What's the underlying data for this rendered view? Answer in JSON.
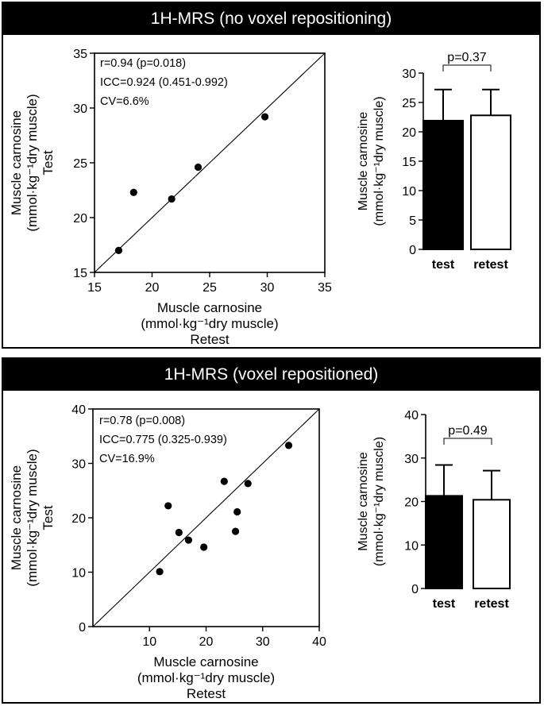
{
  "chart_data": [
    {
      "id": "top",
      "panel_title": "1H-MRS (no voxel repositioning)",
      "scatter": {
        "type": "scatter",
        "xlabel_lines": [
          "Muscle carnosine",
          "(mmol·kg⁻¹dry muscle)",
          "Retest"
        ],
        "ylabel_lines": [
          "Muscle carnosine",
          "(mmol·kg⁻¹dry muscle)",
          "Test"
        ],
        "xlim": [
          15,
          35
        ],
        "ylim": [
          15,
          35
        ],
        "xticks": [
          15,
          20,
          25,
          30,
          35
        ],
        "yticks": [
          15,
          20,
          25,
          30,
          35
        ],
        "identity_line": true,
        "stats": [
          "r=0.94 (p=0.018)",
          "ICC=0.924 (0.451-0.992)",
          "CV=6.6%"
        ],
        "points": [
          {
            "x": 17.1,
            "y": 17.0
          },
          {
            "x": 18.4,
            "y": 22.3
          },
          {
            "x": 21.7,
            "y": 21.7
          },
          {
            "x": 24.0,
            "y": 24.6
          },
          {
            "x": 29.8,
            "y": 29.2
          }
        ]
      },
      "bar": {
        "type": "bar",
        "ylabel_lines": [
          "Muscle carnosine",
          "(mmol·kg⁻¹dry muscle)"
        ],
        "ylim": [
          0,
          30
        ],
        "yticks": [
          0,
          5,
          10,
          15,
          20,
          25,
          30
        ],
        "categories": [
          "test",
          "retest"
        ],
        "values": [
          21.9,
          22.8
        ],
        "errors": [
          5.3,
          4.4
        ],
        "fills": [
          "#000000",
          "#ffffff"
        ],
        "pvalue": "p=0.37"
      }
    },
    {
      "id": "bottom",
      "panel_title": "1H-MRS (voxel repositioned)",
      "scatter": {
        "type": "scatter",
        "xlabel_lines": [
          "Muscle carnosine",
          "(mmol·kg⁻¹dry muscle)",
          "Retest"
        ],
        "ylabel_lines": [
          "Muscle carnosine",
          "(mmol·kg⁻¹dry muscle)",
          "Test"
        ],
        "xlim": [
          0,
          40
        ],
        "ylim": [
          0,
          40
        ],
        "xticks": [
          10,
          20,
          30,
          40
        ],
        "yticks": [
          0,
          10,
          20,
          30,
          40
        ],
        "identity_line": true,
        "stats": [
          "r=0.78 (p=0.008)",
          "ICC=0.775 (0.325-0.939)",
          "CV=16.9%"
        ],
        "points": [
          {
            "x": 11.8,
            "y": 10.1
          },
          {
            "x": 13.3,
            "y": 22.2
          },
          {
            "x": 15.2,
            "y": 17.3
          },
          {
            "x": 16.9,
            "y": 15.9
          },
          {
            "x": 19.6,
            "y": 14.6
          },
          {
            "x": 23.2,
            "y": 26.7
          },
          {
            "x": 25.2,
            "y": 17.5
          },
          {
            "x": 25.5,
            "y": 21.1
          },
          {
            "x": 27.4,
            "y": 26.3
          },
          {
            "x": 34.6,
            "y": 33.3
          }
        ]
      },
      "bar": {
        "type": "bar",
        "ylabel_lines": [
          "Muscle carnosine",
          "(mmol·kg⁻¹dry muscle)"
        ],
        "ylim": [
          0,
          40
        ],
        "yticks": [
          0,
          10,
          20,
          30,
          40
        ],
        "categories": [
          "test",
          "retest"
        ],
        "values": [
          21.3,
          20.4
        ],
        "errors": [
          7.1,
          6.7
        ],
        "fills": [
          "#000000",
          "#ffffff"
        ],
        "pvalue": "p=0.49"
      }
    }
  ]
}
